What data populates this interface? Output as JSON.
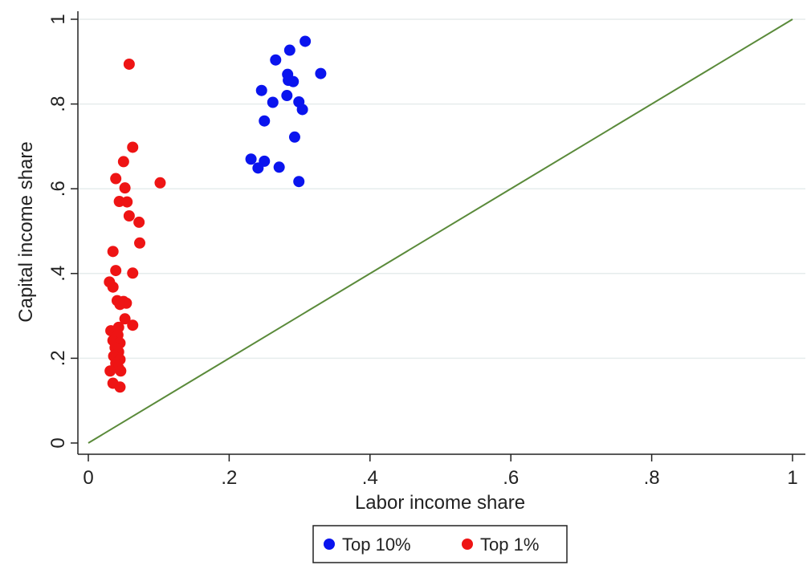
{
  "chart_data": {
    "type": "scatter",
    "title": "",
    "xlabel": "Labor income share",
    "ylabel": "Capital income share",
    "xlim": [
      0,
      1
    ],
    "ylim": [
      0,
      1
    ],
    "xticks": [
      0,
      0.2,
      0.4,
      0.6,
      0.8,
      1
    ],
    "xtick_labels": [
      "0",
      ".2",
      ".4",
      ".6",
      ".8",
      "1"
    ],
    "yticks": [
      0,
      0.2,
      0.4,
      0.6,
      0.8,
      1
    ],
    "ytick_labels": [
      "0",
      ".2",
      ".4",
      ".6",
      ".8",
      "1"
    ],
    "grid": "horizontal",
    "legend_position": "bottom",
    "reference_line": {
      "from": [
        0,
        0
      ],
      "to": [
        1,
        1
      ],
      "color": "#5a8a3a"
    },
    "series": [
      {
        "name": "Top 10%",
        "color": "#0a14ee",
        "points": [
          [
            0.308,
            0.948
          ],
          [
            0.286,
            0.927
          ],
          [
            0.266,
            0.904
          ],
          [
            0.33,
            0.872
          ],
          [
            0.283,
            0.87
          ],
          [
            0.284,
            0.856
          ],
          [
            0.291,
            0.853
          ],
          [
            0.246,
            0.832
          ],
          [
            0.282,
            0.82
          ],
          [
            0.262,
            0.804
          ],
          [
            0.299,
            0.805
          ],
          [
            0.304,
            0.787
          ],
          [
            0.25,
            0.76
          ],
          [
            0.293,
            0.722
          ],
          [
            0.231,
            0.67
          ],
          [
            0.25,
            0.665
          ],
          [
            0.241,
            0.649
          ],
          [
            0.271,
            0.651
          ],
          [
            0.299,
            0.617
          ]
        ]
      },
      {
        "name": "Top 1%",
        "color": "#ee1414",
        "points": [
          [
            0.058,
            0.894
          ],
          [
            0.063,
            0.698
          ],
          [
            0.05,
            0.664
          ],
          [
            0.039,
            0.624
          ],
          [
            0.102,
            0.614
          ],
          [
            0.052,
            0.602
          ],
          [
            0.044,
            0.57
          ],
          [
            0.055,
            0.569
          ],
          [
            0.058,
            0.536
          ],
          [
            0.072,
            0.521
          ],
          [
            0.073,
            0.472
          ],
          [
            0.035,
            0.452
          ],
          [
            0.039,
            0.407
          ],
          [
            0.063,
            0.401
          ],
          [
            0.03,
            0.38
          ],
          [
            0.035,
            0.368
          ],
          [
            0.041,
            0.336
          ],
          [
            0.05,
            0.334
          ],
          [
            0.054,
            0.33
          ],
          [
            0.045,
            0.327
          ],
          [
            0.052,
            0.293
          ],
          [
            0.063,
            0.278
          ],
          [
            0.043,
            0.273
          ],
          [
            0.032,
            0.265
          ],
          [
            0.042,
            0.255
          ],
          [
            0.035,
            0.242
          ],
          [
            0.045,
            0.236
          ],
          [
            0.038,
            0.225
          ],
          [
            0.043,
            0.215
          ],
          [
            0.036,
            0.205
          ],
          [
            0.045,
            0.197
          ],
          [
            0.039,
            0.188
          ],
          [
            0.043,
            0.177
          ],
          [
            0.031,
            0.17
          ],
          [
            0.046,
            0.17
          ],
          [
            0.035,
            0.141
          ],
          [
            0.045,
            0.132
          ]
        ]
      }
    ]
  }
}
